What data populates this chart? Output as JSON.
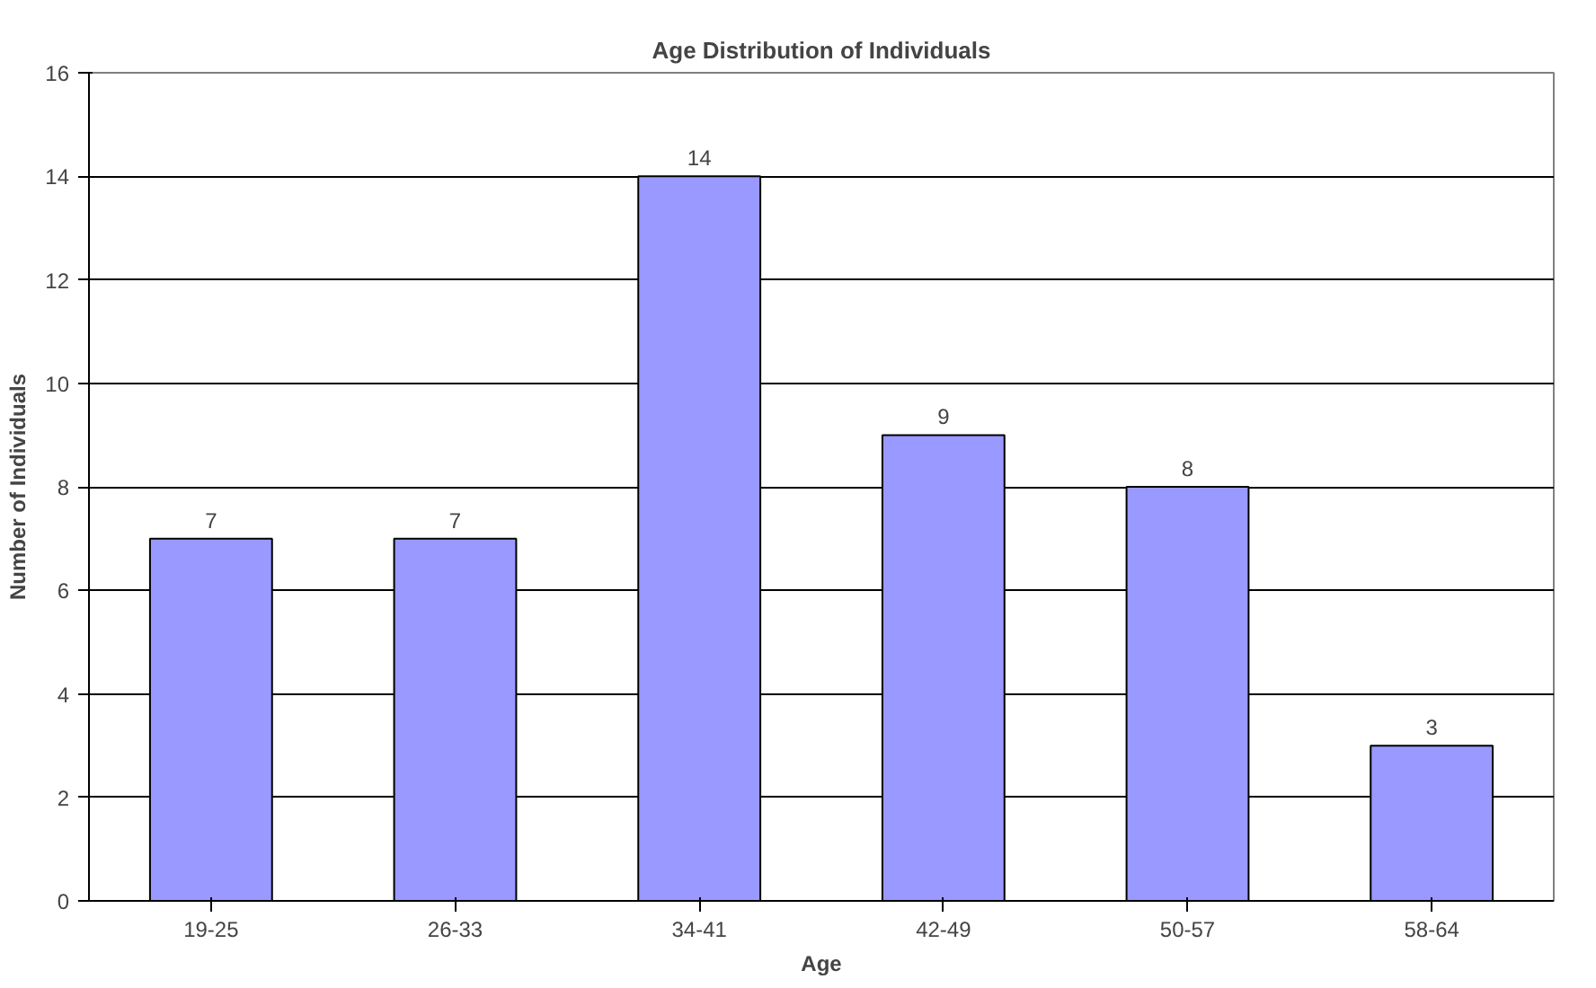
{
  "chart_data": {
    "type": "bar",
    "title": "Age Distribution of Individuals",
    "xlabel": "Age",
    "ylabel": "Number of Individuals",
    "categories": [
      "19-25",
      "26-33",
      "34-41",
      "42-49",
      "50-57",
      "58-64"
    ],
    "values": [
      7,
      7,
      14,
      9,
      8,
      3
    ],
    "color": "#9999ff",
    "ylim": [
      0,
      16
    ],
    "yticks": [
      0,
      2,
      4,
      6,
      8,
      10,
      12,
      14,
      16
    ],
    "grid": "y",
    "data_labels": true
  }
}
